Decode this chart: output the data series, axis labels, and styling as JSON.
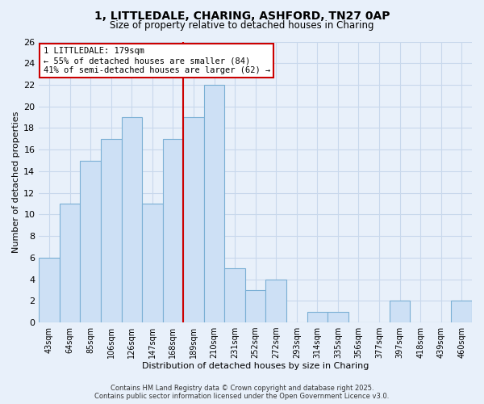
{
  "title1": "1, LITTLEDALE, CHARING, ASHFORD, TN27 0AP",
  "title2": "Size of property relative to detached houses in Charing",
  "xlabel": "Distribution of detached houses by size in Charing",
  "ylabel": "Number of detached properties",
  "bin_labels": [
    "43sqm",
    "64sqm",
    "85sqm",
    "106sqm",
    "126sqm",
    "147sqm",
    "168sqm",
    "189sqm",
    "210sqm",
    "231sqm",
    "252sqm",
    "272sqm",
    "293sqm",
    "314sqm",
    "335sqm",
    "356sqm",
    "377sqm",
    "397sqm",
    "418sqm",
    "439sqm",
    "460sqm"
  ],
  "bar_values": [
    6,
    11,
    15,
    17,
    19,
    11,
    17,
    19,
    22,
    5,
    3,
    4,
    0,
    1,
    1,
    0,
    0,
    2,
    0,
    0,
    2
  ],
  "bar_color": "#cde0f5",
  "bar_edge_color": "#7aafd4",
  "annotation_title": "1 LITTLEDALE: 179sqm",
  "annotation_line1": "← 55% of detached houses are smaller (84)",
  "annotation_line2": "41% of semi-detached houses are larger (62) →",
  "annotation_box_color": "#ffffff",
  "annotation_box_edge": "#cc0000",
  "vline_color": "#cc0000",
  "ylim": [
    0,
    26
  ],
  "yticks": [
    0,
    2,
    4,
    6,
    8,
    10,
    12,
    14,
    16,
    18,
    20,
    22,
    24,
    26
  ],
  "grid_color": "#c8d8ec",
  "footer1": "Contains HM Land Registry data © Crown copyright and database right 2025.",
  "footer2": "Contains public sector information licensed under the Open Government Licence v3.0.",
  "background_color": "#e8f0fa",
  "plot_background": "#e8f0fa"
}
